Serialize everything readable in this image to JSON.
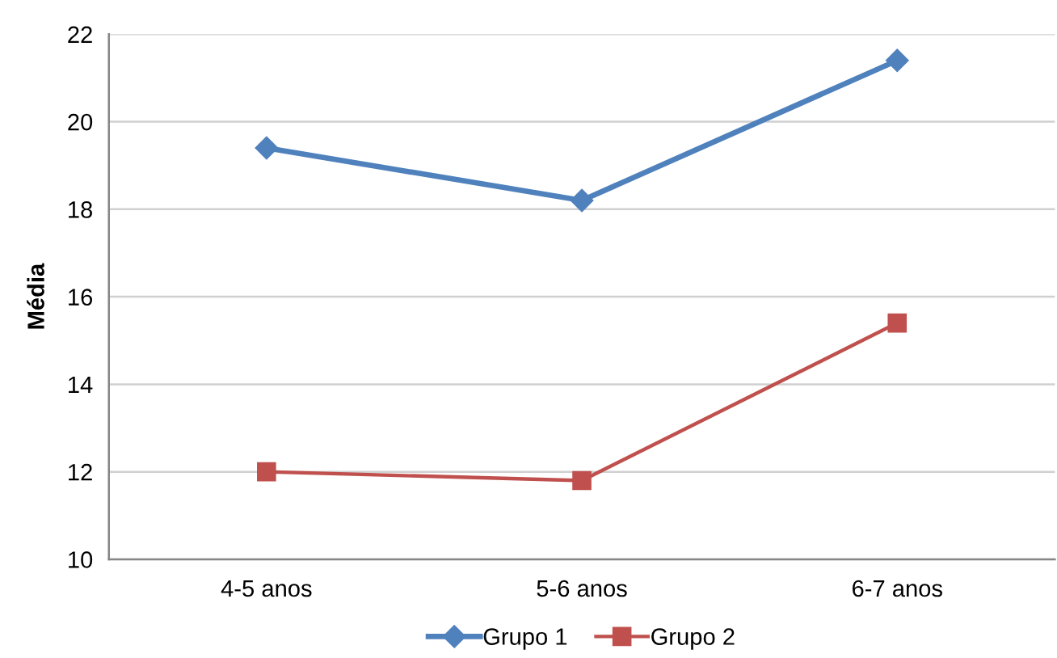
{
  "chart_data": {
    "type": "line",
    "ylabel": "Média",
    "categories": [
      "4-5 anos",
      "5-6 anos",
      "6-7 anos"
    ],
    "series": [
      {
        "name": "Grupo 1",
        "color": "#4f81bd",
        "marker": "diamond",
        "values": [
          19.4,
          18.2,
          21.4
        ]
      },
      {
        "name": "Grupo 2",
        "color": "#c0504d",
        "marker": "square",
        "values": [
          12.0,
          11.8,
          15.4
        ]
      }
    ],
    "ylim": [
      10,
      22
    ],
    "yticks": [
      10,
      12,
      14,
      16,
      18,
      20,
      22
    ],
    "grid": "y",
    "legend": "bottom",
    "line_style": "solid"
  }
}
